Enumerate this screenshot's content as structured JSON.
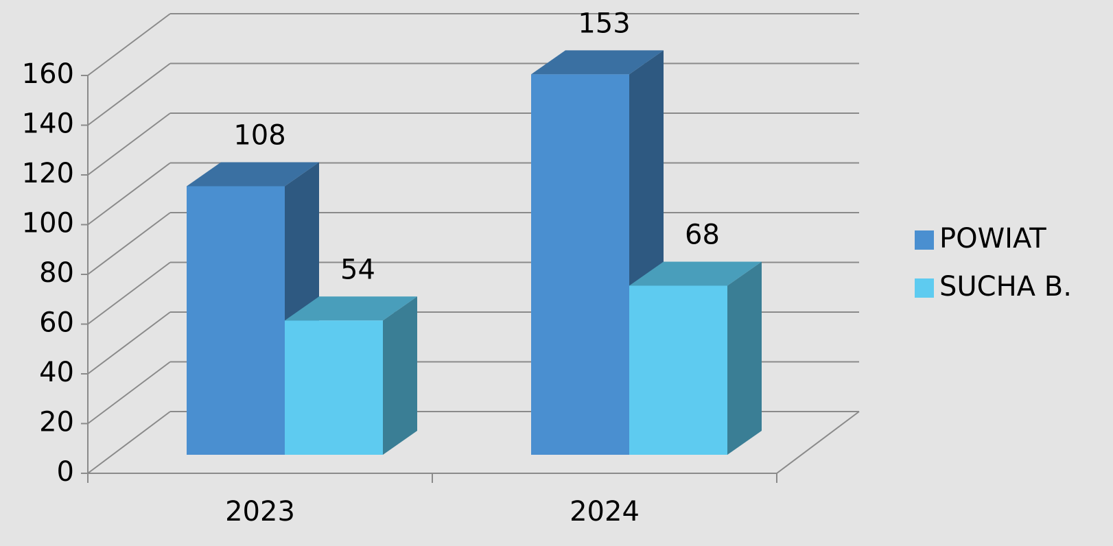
{
  "chart_data": {
    "type": "bar3d",
    "categories": [
      "2023",
      "2024"
    ],
    "series": [
      {
        "name": "POWIAT",
        "color": "#4a8fd0",
        "values": [
          108,
          153
        ]
      },
      {
        "name": "SUCHA B.",
        "color": "#5ecbf0",
        "values": [
          54,
          68
        ]
      }
    ],
    "ylim": [
      0,
      160
    ],
    "yticks": [
      0,
      20,
      40,
      60,
      80,
      100,
      120,
      140,
      160
    ],
    "grid": true,
    "legend": "right"
  }
}
